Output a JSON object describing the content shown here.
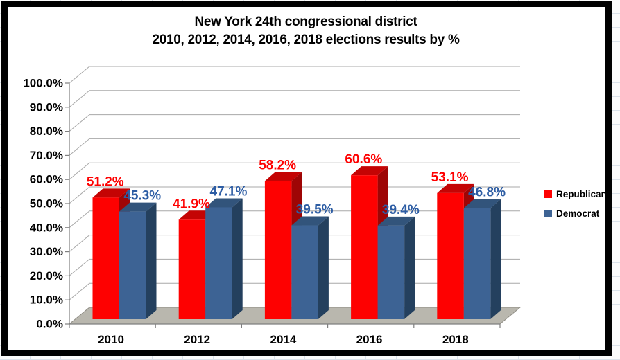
{
  "title": {
    "line1": "New York 24th congressional district",
    "line2": "2010, 2012, 2014, 2016, 2018 elections results by %"
  },
  "chart_data": {
    "type": "bar",
    "variant": "3d-clustered-column",
    "title": "New York 24th congressional district 2010, 2012, 2014, 2016, 2018 elections results by %",
    "categories": [
      "2010",
      "2012",
      "2014",
      "2016",
      "2018"
    ],
    "series": [
      {
        "name": "Republican",
        "values": [
          51.2,
          41.9,
          58.2,
          60.6,
          53.1
        ],
        "labels": [
          "51.2%",
          "41.9%",
          "58.2%",
          "60.6%",
          "53.1%"
        ],
        "color": "#fe0101",
        "color_top": "#c40404",
        "color_side": "#9e0505",
        "label_color": "#fe0101"
      },
      {
        "name": "Democrat",
        "values": [
          45.3,
          47.1,
          39.5,
          39.4,
          46.8
        ],
        "labels": [
          "45.3%",
          "47.1%",
          "39.5%",
          "39.4%",
          "46.8%"
        ],
        "color": "#3d6394",
        "color_top": "#32547b",
        "color_side": "#24405e",
        "label_color": "#2d5da4"
      }
    ],
    "ylim": [
      0,
      100
    ],
    "y_step": 10,
    "y_tick_labels": [
      "0.0%",
      "10.0%",
      "20.0%",
      "30.0%",
      "40.0%",
      "50.0%",
      "60.0%",
      "70.0%",
      "80.0%",
      "90.0%",
      "100.0%"
    ],
    "value_suffix": "%",
    "legend_position": "right",
    "grid": true
  },
  "colors": {
    "frame": "#000000",
    "background": "#ffffff",
    "floor": "#b9b7ae",
    "floor_edge": "#8e8c84",
    "gridline": "#a8a8a8",
    "axis": "#7f7f7f",
    "text": "#000000"
  }
}
